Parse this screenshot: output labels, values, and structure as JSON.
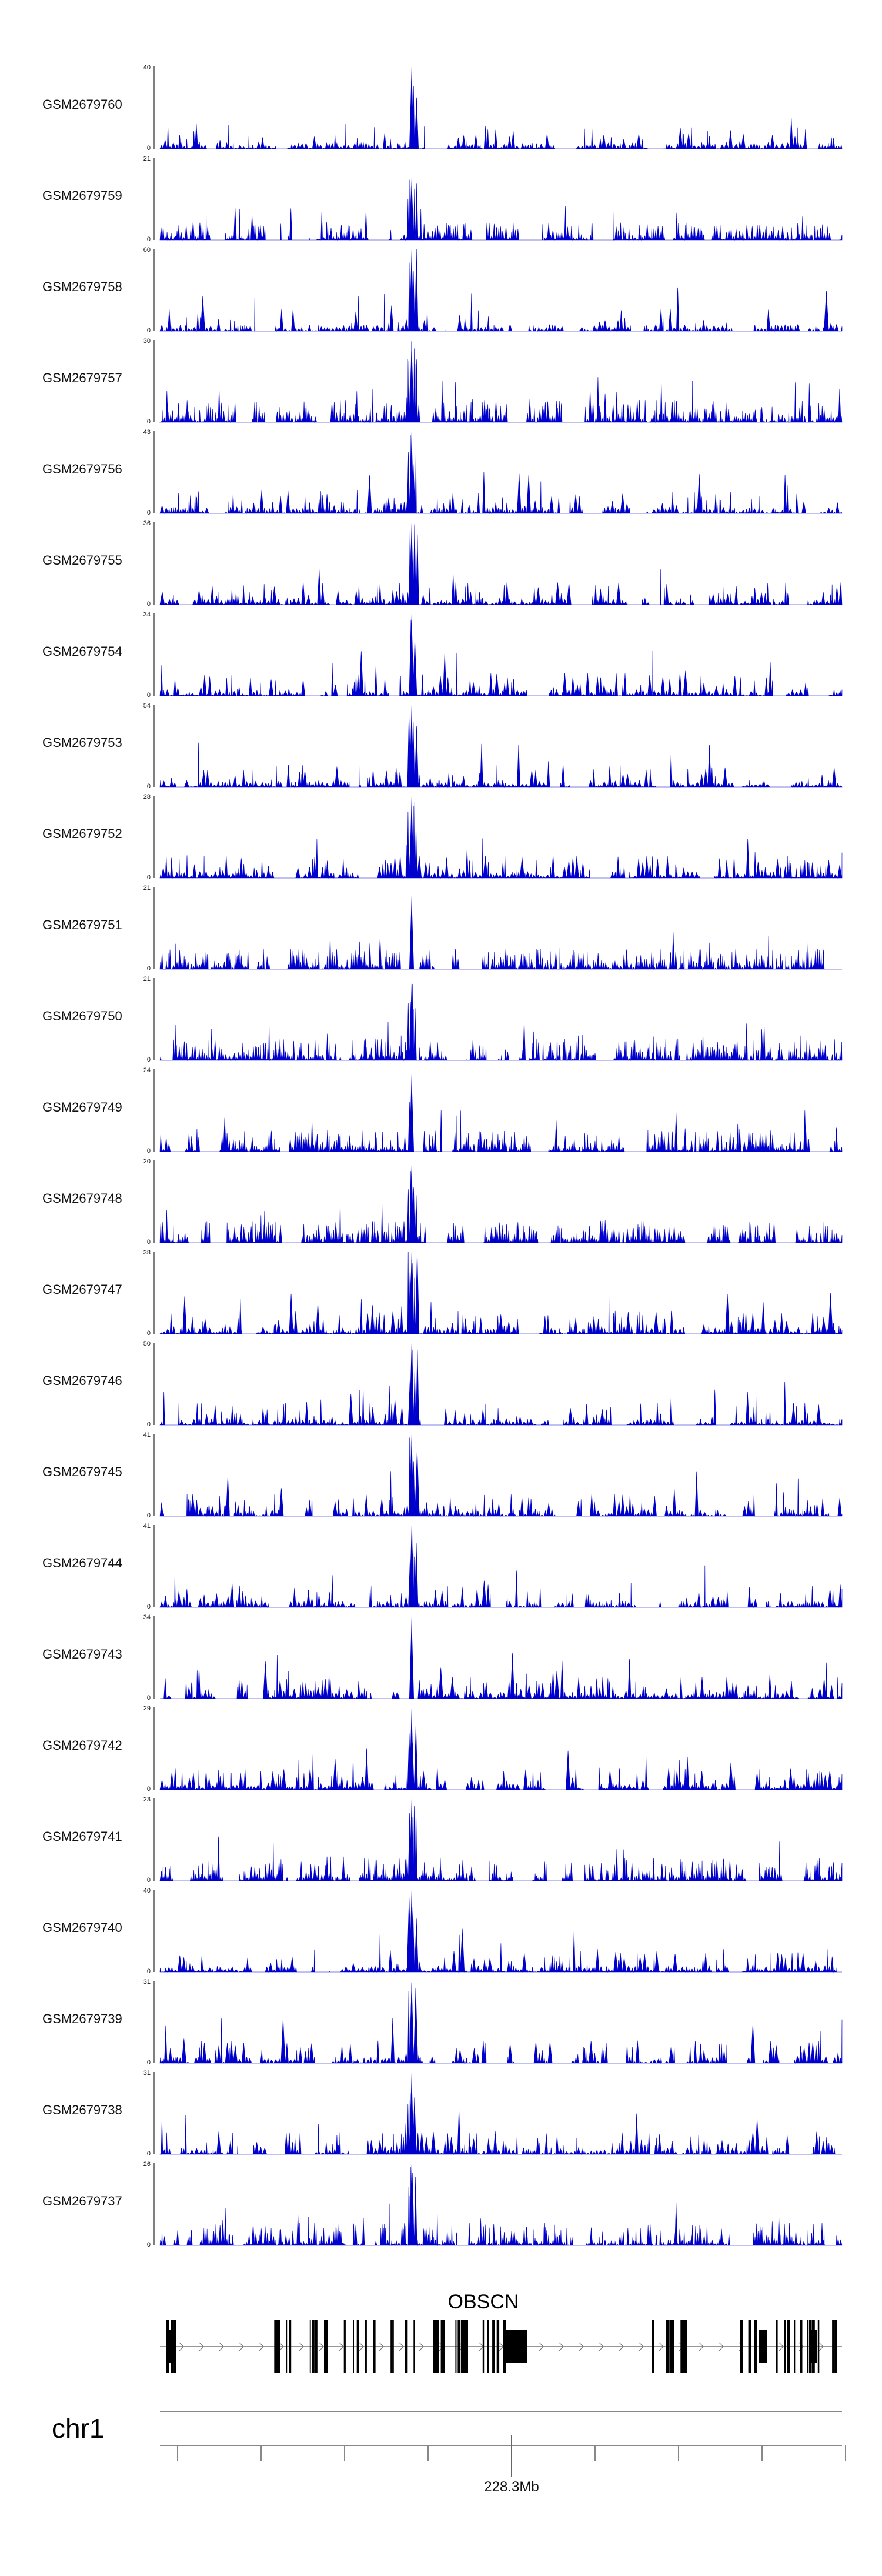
{
  "chart_data": {
    "type": "area",
    "chromosome": "chr1",
    "gene": "OBSCN",
    "axis": {
      "position_label": "228.3Mb"
    },
    "tracks": [
      {
        "name": "GSM2679760",
        "ymax": "40",
        "ymin": "0",
        "peak": 1.0,
        "density": 0.35
      },
      {
        "name": "GSM2679759",
        "ymax": "21",
        "ymin": "0",
        "peak": 0.75,
        "density": 0.8
      },
      {
        "name": "GSM2679758",
        "ymax": "60",
        "ymin": "0",
        "peak": 1.0,
        "density": 0.3
      },
      {
        "name": "GSM2679757",
        "ymax": "30",
        "ymin": "0",
        "peak": 1.0,
        "density": 0.7
      },
      {
        "name": "GSM2679756",
        "ymax": "43",
        "ymin": "0",
        "peak": 1.0,
        "density": 0.45
      },
      {
        "name": "GSM2679755",
        "ymax": "36",
        "ymin": "0",
        "peak": 1.0,
        "density": 0.55
      },
      {
        "name": "GSM2679754",
        "ymax": "34",
        "ymin": "0",
        "peak": 1.0,
        "density": 0.5
      },
      {
        "name": "GSM2679753",
        "ymax": "54",
        "ymin": "0",
        "peak": 1.0,
        "density": 0.4
      },
      {
        "name": "GSM2679752",
        "ymax": "28",
        "ymin": "0",
        "peak": 1.0,
        "density": 0.6
      },
      {
        "name": "GSM2679751",
        "ymax": "21",
        "ymin": "0",
        "peak": 0.9,
        "density": 0.85
      },
      {
        "name": "GSM2679750",
        "ymax": "21",
        "ymin": "0",
        "peak": 0.95,
        "density": 0.8
      },
      {
        "name": "GSM2679749",
        "ymax": "24",
        "ymin": "0",
        "peak": 0.95,
        "density": 0.75
      },
      {
        "name": "GSM2679748",
        "ymax": "20",
        "ymin": "0",
        "peak": 0.95,
        "density": 0.85
      },
      {
        "name": "GSM2679747",
        "ymax": "38",
        "ymin": "0",
        "peak": 1.0,
        "density": 0.5
      },
      {
        "name": "GSM2679746",
        "ymax": "50",
        "ymin": "0",
        "peak": 1.0,
        "density": 0.4
      },
      {
        "name": "GSM2679745",
        "ymax": "41",
        "ymin": "0",
        "peak": 1.0,
        "density": 0.5
      },
      {
        "name": "GSM2679744",
        "ymax": "41",
        "ymin": "0",
        "peak": 1.0,
        "density": 0.45
      },
      {
        "name": "GSM2679743",
        "ymax": "34",
        "ymin": "0",
        "peak": 1.0,
        "density": 0.55
      },
      {
        "name": "GSM2679742",
        "ymax": "29",
        "ymin": "0",
        "peak": 1.0,
        "density": 0.6
      },
      {
        "name": "GSM2679741",
        "ymax": "23",
        "ymin": "0",
        "peak": 1.0,
        "density": 0.75
      },
      {
        "name": "GSM2679740",
        "ymax": "40",
        "ymin": "0",
        "peak": 1.0,
        "density": 0.45
      },
      {
        "name": "GSM2679739",
        "ymax": "31",
        "ymin": "0",
        "peak": 1.0,
        "density": 0.55
      },
      {
        "name": "GSM2679738",
        "ymax": "31",
        "ymin": "0",
        "peak": 1.0,
        "density": 0.55
      },
      {
        "name": "GSM2679737",
        "ymax": "26",
        "ymin": "0",
        "peak": 1.0,
        "density": 0.65
      }
    ],
    "colors": {
      "signal": "#0000cc",
      "gene": "#000000",
      "axis": "#888888"
    }
  }
}
